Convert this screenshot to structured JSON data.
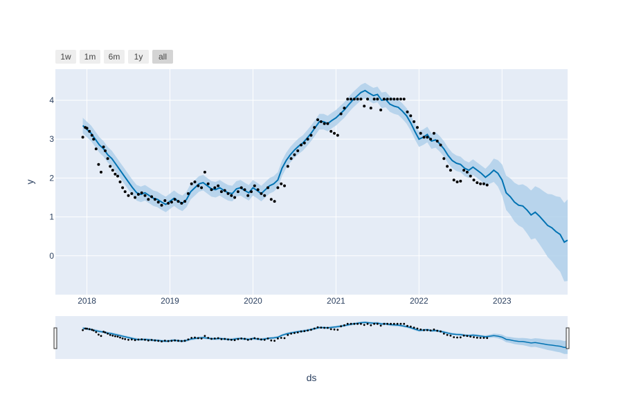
{
  "range_selector": {
    "buttons": [
      {
        "label": "1w",
        "active": false
      },
      {
        "label": "1m",
        "active": false
      },
      {
        "label": "6m",
        "active": false
      },
      {
        "label": "1y",
        "active": false
      },
      {
        "label": "all",
        "active": true
      }
    ]
  },
  "colors": {
    "plot_bg": "#e5ecf6",
    "grid": "#ffffff",
    "forecast_line": "#0072b2",
    "uncertainty_band": "#b0d0ea",
    "actual_points": "#000000"
  },
  "chart_data": {
    "type": "scatter",
    "xlabel": "ds",
    "ylabel": "y",
    "xlim": [
      2017.62,
      2023.79
    ],
    "ylim": [
      -1.0,
      4.8
    ],
    "x_ticks": [
      {
        "value": 2018,
        "label": "2018"
      },
      {
        "value": 2019,
        "label": "2019"
      },
      {
        "value": 2020,
        "label": "2020"
      },
      {
        "value": 2021,
        "label": "2021"
      },
      {
        "value": 2022,
        "label": "2022"
      },
      {
        "value": 2023,
        "label": "2023"
      }
    ],
    "y_ticks": [
      {
        "value": 0,
        "label": "0"
      },
      {
        "value": 1,
        "label": "1"
      },
      {
        "value": 2,
        "label": "2"
      },
      {
        "value": 3,
        "label": "3"
      },
      {
        "value": 4,
        "label": "4"
      }
    ],
    "grid": true,
    "rangeslider": true,
    "forecast": {
      "x": [
        2017.95,
        2018.0,
        2018.05,
        2018.1,
        2018.15,
        2018.2,
        2018.25,
        2018.3,
        2018.35,
        2018.4,
        2018.45,
        2018.5,
        2018.55,
        2018.6,
        2018.65,
        2018.7,
        2018.75,
        2018.8,
        2018.85,
        2018.9,
        2018.95,
        2019.0,
        2019.05,
        2019.1,
        2019.15,
        2019.2,
        2019.25,
        2019.3,
        2019.35,
        2019.4,
        2019.45,
        2019.5,
        2019.55,
        2019.6,
        2019.65,
        2019.7,
        2019.75,
        2019.8,
        2019.85,
        2019.9,
        2019.95,
        2020.0,
        2020.05,
        2020.1,
        2020.15,
        2020.2,
        2020.25,
        2020.3,
        2020.35,
        2020.4,
        2020.45,
        2020.5,
        2020.55,
        2020.6,
        2020.65,
        2020.7,
        2020.75,
        2020.8,
        2020.85,
        2020.9,
        2020.95,
        2021.0,
        2021.05,
        2021.1,
        2021.15,
        2021.2,
        2021.25,
        2021.3,
        2021.35,
        2021.4,
        2021.45,
        2021.5,
        2021.55,
        2021.6,
        2021.65,
        2021.7,
        2021.75,
        2021.8,
        2021.85,
        2021.9,
        2021.95,
        2022.0,
        2022.05,
        2022.1,
        2022.15,
        2022.2,
        2022.25,
        2022.3,
        2022.35,
        2022.4,
        2022.45,
        2022.5,
        2022.55,
        2022.6,
        2022.65,
        2022.7,
        2022.75,
        2022.8,
        2022.85,
        2022.9,
        2022.95,
        2023.0,
        2023.05,
        2023.1,
        2023.15,
        2023.2,
        2023.25,
        2023.3,
        2023.35,
        2023.4,
        2023.45,
        2023.5,
        2023.55,
        2023.6,
        2023.65,
        2023.7,
        2023.75,
        2023.79
      ],
      "y": [
        3.35,
        3.25,
        3.15,
        3.0,
        2.85,
        2.75,
        2.6,
        2.5,
        2.35,
        2.2,
        2.05,
        1.9,
        1.75,
        1.62,
        1.58,
        1.62,
        1.55,
        1.48,
        1.45,
        1.38,
        1.32,
        1.4,
        1.48,
        1.4,
        1.35,
        1.45,
        1.65,
        1.75,
        1.85,
        1.88,
        1.8,
        1.72,
        1.7,
        1.75,
        1.68,
        1.62,
        1.6,
        1.72,
        1.75,
        1.68,
        1.62,
        1.75,
        1.68,
        1.6,
        1.7,
        1.8,
        1.85,
        1.95,
        2.25,
        2.45,
        2.6,
        2.72,
        2.82,
        2.9,
        3.02,
        3.15,
        3.3,
        3.45,
        3.45,
        3.4,
        3.48,
        3.55,
        3.65,
        3.75,
        3.88,
        4.0,
        4.1,
        4.2,
        4.25,
        4.18,
        4.12,
        4.15,
        4.0,
        4.02,
        3.9,
        3.85,
        3.82,
        3.72,
        3.6,
        3.42,
        3.2,
        3.0,
        3.05,
        3.12,
        2.95,
        2.98,
        2.88,
        2.75,
        2.58,
        2.45,
        2.38,
        2.35,
        2.25,
        2.2,
        2.28,
        2.2,
        2.12,
        2.02,
        2.1,
        2.2,
        2.12,
        1.95,
        1.62,
        1.52,
        1.38,
        1.3,
        1.28,
        1.18,
        1.05,
        1.12,
        1.02,
        0.9,
        0.78,
        0.72,
        0.62,
        0.55,
        0.35,
        0.4
      ],
      "lower": [
        3.15,
        3.05,
        2.95,
        2.8,
        2.65,
        2.55,
        2.4,
        2.3,
        2.15,
        2.0,
        1.85,
        1.7,
        1.55,
        1.42,
        1.38,
        1.42,
        1.35,
        1.28,
        1.25,
        1.18,
        1.12,
        1.2,
        1.28,
        1.2,
        1.15,
        1.25,
        1.45,
        1.55,
        1.65,
        1.68,
        1.6,
        1.52,
        1.5,
        1.55,
        1.48,
        1.42,
        1.4,
        1.52,
        1.55,
        1.48,
        1.42,
        1.55,
        1.48,
        1.4,
        1.5,
        1.6,
        1.65,
        1.75,
        2.05,
        2.25,
        2.4,
        2.52,
        2.62,
        2.7,
        2.82,
        2.95,
        3.1,
        3.25,
        3.25,
        3.2,
        3.28,
        3.35,
        3.45,
        3.55,
        3.68,
        3.8,
        3.9,
        4.0,
        4.05,
        3.98,
        3.92,
        3.95,
        3.8,
        3.82,
        3.7,
        3.65,
        3.62,
        3.52,
        3.4,
        3.22,
        3.0,
        2.8,
        2.85,
        2.92,
        2.75,
        2.78,
        2.68,
        2.55,
        2.38,
        2.25,
        2.18,
        2.15,
        2.05,
        2.0,
        2.08,
        2.0,
        1.92,
        1.8,
        1.85,
        1.9,
        1.78,
        1.55,
        1.18,
        1.05,
        0.88,
        0.78,
        0.72,
        0.58,
        0.42,
        0.45,
        0.3,
        0.14,
        -0.03,
        -0.14,
        -0.29,
        -0.41,
        -0.66,
        -0.65
      ],
      "upper": [
        3.55,
        3.45,
        3.35,
        3.2,
        3.05,
        2.95,
        2.8,
        2.7,
        2.55,
        2.4,
        2.25,
        2.1,
        1.95,
        1.82,
        1.78,
        1.82,
        1.75,
        1.68,
        1.65,
        1.58,
        1.52,
        1.6,
        1.68,
        1.6,
        1.55,
        1.65,
        1.85,
        1.95,
        2.05,
        2.08,
        2.0,
        1.92,
        1.9,
        1.95,
        1.88,
        1.82,
        1.8,
        1.92,
        1.95,
        1.88,
        1.82,
        1.95,
        1.88,
        1.8,
        1.9,
        2.0,
        2.05,
        2.15,
        2.45,
        2.65,
        2.8,
        2.92,
        3.02,
        3.1,
        3.22,
        3.35,
        3.5,
        3.65,
        3.65,
        3.6,
        3.68,
        3.75,
        3.85,
        3.95,
        4.08,
        4.2,
        4.3,
        4.4,
        4.45,
        4.38,
        4.32,
        4.35,
        4.2,
        4.22,
        4.1,
        4.05,
        4.02,
        3.92,
        3.8,
        3.62,
        3.4,
        3.2,
        3.25,
        3.32,
        3.15,
        3.18,
        3.08,
        2.95,
        2.78,
        2.65,
        2.58,
        2.55,
        2.45,
        2.4,
        2.48,
        2.4,
        2.32,
        2.24,
        2.35,
        2.5,
        2.46,
        2.35,
        2.06,
        1.99,
        1.88,
        1.82,
        1.84,
        1.78,
        1.68,
        1.79,
        1.74,
        1.66,
        1.59,
        1.58,
        1.53,
        1.51,
        1.36,
        1.45
      ]
    },
    "actual": {
      "x": [
        2017.95,
        2017.98,
        2018.0,
        2018.03,
        2018.06,
        2018.08,
        2018.11,
        2018.14,
        2018.17,
        2018.2,
        2018.22,
        2018.25,
        2018.28,
        2018.31,
        2018.34,
        2018.37,
        2018.4,
        2018.43,
        2018.46,
        2018.5,
        2018.54,
        2018.58,
        2018.62,
        2018.66,
        2018.7,
        2018.74,
        2018.78,
        2018.82,
        2018.86,
        2018.9,
        2018.94,
        2018.98,
        2019.02,
        2019.06,
        2019.1,
        2019.14,
        2019.18,
        2019.22,
        2019.26,
        2019.3,
        2019.34,
        2019.38,
        2019.42,
        2019.46,
        2019.5,
        2019.54,
        2019.58,
        2019.62,
        2019.66,
        2019.7,
        2019.74,
        2019.78,
        2019.82,
        2019.86,
        2019.9,
        2019.94,
        2019.98,
        2020.02,
        2020.06,
        2020.1,
        2020.14,
        2020.18,
        2020.22,
        2020.26,
        2020.3,
        2020.34,
        2020.38,
        2020.42,
        2020.46,
        2020.5,
        2020.54,
        2020.58,
        2020.62,
        2020.66,
        2020.7,
        2020.74,
        2020.78,
        2020.82,
        2020.86,
        2020.9,
        2020.94,
        2020.98,
        2021.02,
        2021.06,
        2021.1,
        2021.14,
        2021.18,
        2021.22,
        2021.26,
        2021.3,
        2021.34,
        2021.38,
        2021.42,
        2021.46,
        2021.5,
        2021.54,
        2021.58,
        2021.62,
        2021.66,
        2021.7,
        2021.74,
        2021.78,
        2021.82,
        2021.86,
        2021.9,
        2021.94,
        2021.98,
        2022.02,
        2022.06,
        2022.1,
        2022.14,
        2022.18,
        2022.22,
        2022.26,
        2022.3,
        2022.34,
        2022.38,
        2022.42,
        2022.46,
        2022.5,
        2022.54,
        2022.58,
        2022.62,
        2022.66,
        2022.7,
        2022.74,
        2022.78,
        2022.82
      ],
      "y": [
        3.05,
        3.3,
        3.28,
        3.2,
        3.1,
        3.0,
        2.75,
        2.35,
        2.15,
        2.8,
        2.7,
        2.5,
        2.3,
        2.2,
        2.1,
        2.05,
        1.9,
        1.75,
        1.65,
        1.55,
        1.6,
        1.5,
        1.58,
        1.62,
        1.55,
        1.45,
        1.52,
        1.45,
        1.38,
        1.3,
        1.42,
        1.35,
        1.38,
        1.45,
        1.4,
        1.35,
        1.4,
        1.6,
        1.85,
        1.9,
        1.8,
        1.75,
        2.15,
        1.85,
        1.7,
        1.75,
        1.8,
        1.65,
        1.68,
        1.6,
        1.55,
        1.5,
        1.65,
        1.75,
        1.7,
        1.55,
        1.65,
        1.8,
        1.7,
        1.6,
        1.55,
        1.75,
        1.45,
        1.4,
        1.75,
        1.85,
        1.8,
        2.3,
        2.5,
        2.6,
        2.7,
        2.85,
        2.9,
        3.0,
        3.1,
        3.3,
        3.5,
        3.45,
        3.4,
        3.4,
        3.2,
        3.15,
        3.1,
        3.65,
        3.8,
        4.03,
        4.03,
        4.03,
        4.03,
        4.03,
        3.85,
        4.03,
        3.8,
        4.03,
        4.03,
        3.75,
        4.03,
        4.03,
        4.03,
        4.03,
        4.03,
        4.03,
        4.03,
        3.7,
        3.6,
        3.45,
        3.3,
        3.15,
        3.05,
        3.05,
        3.0,
        3.15,
        2.95,
        2.85,
        2.5,
        2.3,
        2.2,
        1.95,
        1.9,
        1.92,
        2.2,
        2.15,
        2.05,
        1.95,
        1.88,
        1.85,
        1.85,
        1.82
      ]
    }
  }
}
